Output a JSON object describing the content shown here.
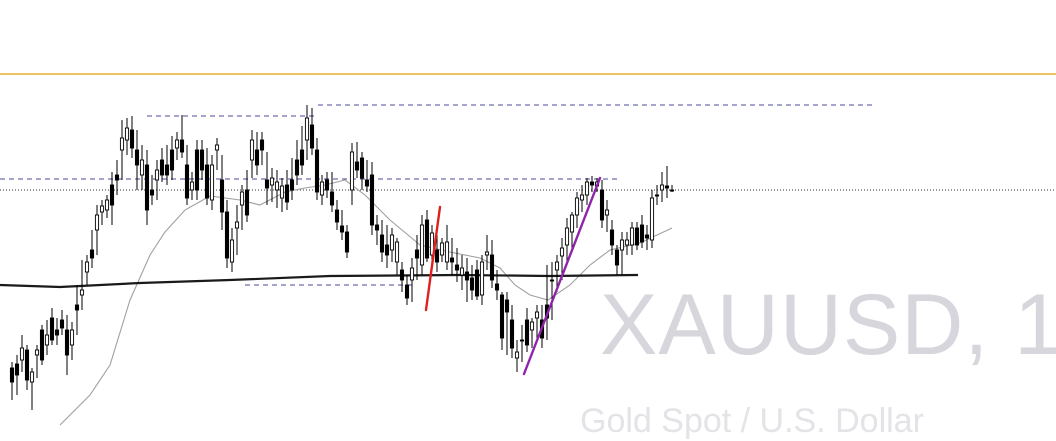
{
  "watermark": {
    "symbol": "XAUUSD, 1",
    "description": "Gold Spot / U.S. Dollar"
  },
  "colors": {
    "background": "#ffffff",
    "candle": "#000000",
    "ma_slow": "#1a1a1a",
    "ma_fast": "#a0a0a0",
    "level_line": "#4a4a9a",
    "alert_line": "#e0a000",
    "price_line": "#333333",
    "trend_red": "#e02020",
    "trend_purple": "#8e24aa",
    "watermark": "#d6d6dc"
  },
  "chart_data": {
    "type": "candlestick",
    "series": [
      {
        "name": "candles",
        "ohlc": [
          [
            368,
            362,
            400,
            382
          ],
          [
            364,
            355,
            395,
            375
          ],
          [
            360,
            335,
            372,
            348
          ],
          [
            350,
            345,
            390,
            380
          ],
          [
            382,
            368,
            410,
            372
          ],
          [
            355,
            345,
            378,
            350
          ],
          [
            330,
            325,
            365,
            360
          ],
          [
            345,
            320,
            355,
            335
          ],
          [
            318,
            308,
            345,
            340
          ],
          [
            330,
            318,
            345,
            335
          ],
          [
            320,
            310,
            335,
            328
          ],
          [
            330,
            315,
            375,
            355
          ],
          [
            345,
            322,
            360,
            330
          ],
          [
            305,
            285,
            335,
            310
          ],
          [
            295,
            260,
            310,
            290
          ],
          [
            272,
            255,
            285,
            262
          ],
          [
            250,
            230,
            268,
            258
          ],
          [
            230,
            205,
            255,
            215
          ],
          [
            212,
            200,
            225,
            206
          ],
          [
            210,
            195,
            218,
            200
          ],
          [
            185,
            172,
            225,
            205
          ],
          [
            175,
            160,
            195,
            180
          ],
          [
            150,
            120,
            180,
            138
          ],
          [
            140,
            118,
            155,
            128
          ],
          [
            130,
            116,
            158,
            148
          ],
          [
            150,
            130,
            190,
            165
          ],
          [
            175,
            145,
            190,
            160
          ],
          [
            165,
            150,
            225,
            210
          ],
          [
            190,
            175,
            205,
            195
          ],
          [
            180,
            160,
            200,
            170
          ],
          [
            160,
            148,
            182,
            175
          ],
          [
            165,
            145,
            185,
            175
          ],
          [
            150,
            136,
            180,
            170
          ],
          [
            148,
            132,
            160,
            140
          ],
          [
            140,
            115,
            158,
            152
          ],
          [
            165,
            145,
            205,
            198
          ],
          [
            190,
            172,
            200,
            182
          ],
          [
            150,
            140,
            200,
            190
          ],
          [
            150,
            140,
            180,
            170
          ],
          [
            165,
            148,
            205,
            198
          ],
          [
            200,
            155,
            210,
            165
          ],
          [
            150,
            138,
            170,
            145
          ],
          [
            180,
            155,
            230,
            212
          ],
          [
            212,
            200,
            268,
            258
          ],
          [
            262,
            228,
            272,
            240
          ],
          [
            228,
            205,
            255,
            222
          ],
          [
            205,
            185,
            230,
            192
          ],
          [
            190,
            170,
            222,
            215
          ],
          [
            160,
            130,
            178,
            140
          ],
          [
            150,
            132,
            175,
            165
          ],
          [
            140,
            132,
            165,
            150
          ],
          [
            180,
            152,
            205,
            188
          ],
          [
            185,
            168,
            202,
            178
          ],
          [
            190,
            170,
            208,
            182
          ],
          [
            198,
            178,
            212,
            186
          ],
          [
            185,
            170,
            210,
            202
          ],
          [
            180,
            158,
            200,
            190
          ],
          [
            160,
            140,
            185,
            175
          ],
          [
            150,
            126,
            175,
            165
          ],
          [
            140,
            105,
            160,
            118
          ],
          [
            125,
            108,
            155,
            148
          ],
          [
            150,
            138,
            200,
            192
          ],
          [
            195,
            175,
            205,
            182
          ],
          [
            180,
            172,
            198,
            190
          ],
          [
            192,
            172,
            212,
            205
          ],
          [
            210,
            200,
            230,
            222
          ],
          [
            226,
            210,
            240,
            232
          ],
          [
            232,
            225,
            258,
            252
          ],
          [
            190,
            143,
            205,
            152
          ],
          [
            162,
            142,
            178,
            170
          ],
          [
            158,
            152,
            190,
            178
          ],
          [
            180,
            160,
            192,
            186
          ],
          [
            175,
            162,
            235,
            225
          ],
          [
            225,
            215,
            245,
            230
          ],
          [
            235,
            220,
            262,
            252
          ],
          [
            245,
            225,
            268,
            255
          ],
          [
            250,
            228,
            262,
            235
          ],
          [
            262,
            238,
            275,
            242
          ],
          [
            270,
            262,
            292,
            280
          ],
          [
            285,
            275,
            305,
            298
          ],
          [
            280,
            258,
            302,
            268
          ],
          [
            250,
            235,
            280,
            258
          ],
          [
            265,
            215,
            275,
            225
          ],
          [
            220,
            210,
            262,
            258
          ],
          [
            255,
            225,
            268,
            233
          ],
          [
            250,
            235,
            272,
            262
          ],
          [
            255,
            238,
            262,
            243
          ],
          [
            262,
            225,
            270,
            242
          ],
          [
            258,
            238,
            275,
            262
          ],
          [
            265,
            248,
            282,
            270
          ],
          [
            275,
            255,
            290,
            268
          ],
          [
            272,
            258,
            302,
            280
          ],
          [
            278,
            265,
            300,
            290
          ],
          [
            270,
            260,
            300,
            296
          ],
          [
            295,
            255,
            305,
            262
          ],
          [
            255,
            235,
            270,
            252
          ],
          [
            255,
            240,
            288,
            280
          ],
          [
            284,
            270,
            300,
            290
          ],
          [
            295,
            292,
            350,
            338
          ],
          [
            300,
            292,
            355,
            312
          ],
          [
            320,
            305,
            358,
            348
          ],
          [
            358,
            340,
            372,
            352
          ],
          [
            340,
            325,
            362,
            340
          ],
          [
            320,
            308,
            352,
            345
          ],
          [
            330,
            318,
            348,
            322
          ],
          [
            318,
            305,
            340,
            312
          ],
          [
            320,
            305,
            348,
            338
          ],
          [
            305,
            265,
            340,
            318
          ],
          [
            280,
            262,
            320,
            280
          ],
          [
            270,
            255,
            292,
            262
          ],
          [
            256,
            238,
            280,
            248
          ],
          [
            245,
            218,
            262,
            228
          ],
          [
            232,
            212,
            248,
            215
          ],
          [
            215,
            192,
            228,
            198
          ],
          [
            200,
            185,
            212,
            195
          ],
          [
            195,
            178,
            205,
            182
          ],
          [
            182,
            176,
            192,
            185
          ],
          [
            186,
            178,
            192,
            182
          ],
          [
            190,
            180,
            228,
            220
          ],
          [
            215,
            200,
            232,
            210
          ],
          [
            230,
            220,
            255,
            245
          ],
          [
            250,
            245,
            275,
            265
          ],
          [
            250,
            232,
            275,
            240
          ],
          [
            245,
            232,
            255,
            240
          ],
          [
            245,
            222,
            255,
            228
          ],
          [
            228,
            222,
            250,
            245
          ],
          [
            225,
            215,
            248,
            242
          ],
          [
            235,
            225,
            250,
            238
          ],
          [
            240,
            190,
            248,
            198
          ],
          [
            195,
            185,
            205,
            195
          ],
          [
            190,
            172,
            202,
            185
          ],
          [
            186,
            166,
            198,
            188
          ],
          [
            190,
            185,
            192,
            190
          ]
        ]
      }
    ],
    "y_range": [
      410,
      95
    ],
    "note_levels": {
      "resistance_high": 105,
      "resistance_mid": 116,
      "dashed_mid": 179,
      "current_price": 190,
      "support": 285,
      "alert": 74
    },
    "ma_slow_points": [
      [
        0,
        285
      ],
      [
        60,
        287
      ],
      [
        140,
        283
      ],
      [
        230,
        280
      ],
      [
        330,
        276
      ],
      [
        460,
        275
      ],
      [
        550,
        276
      ],
      [
        638,
        275
      ]
    ],
    "ma_fast_points": [
      [
        60,
        425
      ],
      [
        90,
        395
      ],
      [
        110,
        365
      ],
      [
        130,
        300
      ],
      [
        150,
        255
      ],
      [
        165,
        232
      ],
      [
        185,
        210
      ],
      [
        210,
        196
      ],
      [
        240,
        200
      ],
      [
        260,
        205
      ],
      [
        285,
        192
      ],
      [
        305,
        188
      ],
      [
        325,
        185
      ],
      [
        345,
        180
      ],
      [
        365,
        195
      ],
      [
        390,
        220
      ],
      [
        420,
        245
      ],
      [
        450,
        252
      ],
      [
        480,
        258
      ],
      [
        500,
        268
      ],
      [
        515,
        285
      ],
      [
        530,
        295
      ],
      [
        548,
        300
      ],
      [
        570,
        285
      ],
      [
        590,
        265
      ],
      [
        610,
        250
      ],
      [
        640,
        243
      ],
      [
        672,
        228
      ]
    ],
    "drawings": [
      {
        "type": "trendline",
        "color": "red",
        "from": [
          426,
          310
        ],
        "to": [
          440,
          207
        ]
      },
      {
        "type": "trendline",
        "color": "purple",
        "from": [
          524,
          374
        ],
        "to": [
          600,
          178
        ]
      }
    ]
  }
}
